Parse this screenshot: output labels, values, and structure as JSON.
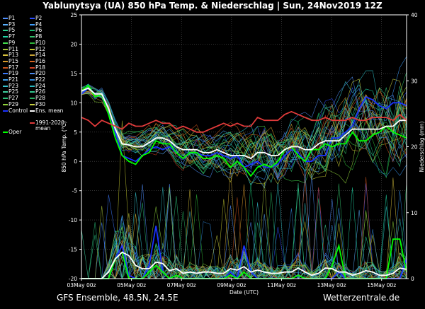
{
  "chart_data": {
    "type": "line",
    "title": "Yablunytsya  (UA)  850 hPa Temp. & Niederschlag | Sun, 24Nov2019 12Z",
    "footer_left": "GFS Ensemble, 48.5N, 24.5E",
    "footer_right": "Wetterzentrale.de",
    "xlabel": "Date (UTC)",
    "ylabel_left": "850 hPa Temp. (°C)",
    "ylabel_right": "Niederschlag (mm)",
    "ylim_left": [
      -20,
      25
    ],
    "ylim_right": [
      0,
      40
    ],
    "xlim_hours": [
      0,
      312
    ],
    "yticks_left": [
      -20,
      -15,
      -10,
      -5,
      0,
      5,
      10,
      15,
      20,
      25
    ],
    "yticks_right": [
      0,
      10,
      20,
      30,
      40
    ],
    "xticks": [
      {
        "h": 0,
        "label": "03May 00z"
      },
      {
        "h": 48,
        "label": "05May 00z"
      },
      {
        "h": 96,
        "label": "07May 00z"
      },
      {
        "h": 144,
        "label": "09May 00z"
      },
      {
        "h": 192,
        "label": "11May 00z"
      },
      {
        "h": 240,
        "label": "13May 00z"
      },
      {
        "h": 288,
        "label": "15May 00z"
      }
    ],
    "grid": true,
    "legend": {
      "position": "left",
      "items": [
        {
          "label": "P1",
          "color": "#4f8fff"
        },
        {
          "label": "P2",
          "color": "#2a4cff"
        },
        {
          "label": "P3",
          "color": "#59b0ff"
        },
        {
          "label": "P4",
          "color": "#3fa0ff"
        },
        {
          "label": "P5",
          "color": "#2ecf8f"
        },
        {
          "label": "P6",
          "color": "#17b86c"
        },
        {
          "label": "P7",
          "color": "#21d6a5"
        },
        {
          "label": "P8",
          "color": "#33c06b"
        },
        {
          "label": "P9",
          "color": "#44e04f"
        },
        {
          "label": "P10",
          "color": "#2fb83a"
        },
        {
          "label": "P11",
          "color": "#a6c43a"
        },
        {
          "label": "P12",
          "color": "#c2c730"
        },
        {
          "label": "P13",
          "color": "#d9c23c"
        },
        {
          "label": "P14",
          "color": "#c9a434"
        },
        {
          "label": "P15",
          "color": "#d89a2a"
        },
        {
          "label": "P16",
          "color": "#d9641f"
        },
        {
          "label": "P17",
          "color": "#c9531c"
        },
        {
          "label": "P18",
          "color": "#cf4020"
        },
        {
          "label": "P19",
          "color": "#3c7bff"
        },
        {
          "label": "P20",
          "color": "#4c8cf0"
        },
        {
          "label": "P21",
          "color": "#3b9dea"
        },
        {
          "label": "P22",
          "color": "#2f86d8"
        },
        {
          "label": "P23",
          "color": "#36c4d0"
        },
        {
          "label": "P24",
          "color": "#2ab8c0"
        },
        {
          "label": "P25",
          "color": "#3fd0a0"
        },
        {
          "label": "P26",
          "color": "#33c890"
        },
        {
          "label": "P27",
          "color": "#2cc07a"
        },
        {
          "label": "P28",
          "color": "#27b060"
        },
        {
          "label": "P29",
          "color": "#8fd33a"
        },
        {
          "label": "P30",
          "color": "#c8d040"
        },
        {
          "label": "Control",
          "color": "#1a33ff"
        },
        {
          "label": "Ens. mean",
          "color": "#ffffff"
        },
        {
          "label": "1991-2020\nmean",
          "color": "#e03a3a"
        },
        {
          "label": "Oper",
          "color": "#00ff00"
        }
      ]
    },
    "series_temp": [
      {
        "name": "Control",
        "color": "#1a33ff",
        "values": [
          11.5,
          12.5,
          11.5,
          11.5,
          9,
          5,
          1,
          0.5,
          0,
          1,
          2,
          2.5,
          2,
          2.5,
          1.5,
          0.5,
          1.5,
          1.5,
          1,
          1,
          1.5,
          1,
          0.5,
          1,
          -1,
          -0.5,
          0,
          -1,
          -1,
          -0.5,
          1,
          2,
          1.5,
          0,
          0,
          1,
          1,
          4,
          4,
          5,
          6,
          9,
          11,
          10.5,
          9.5,
          9,
          10,
          10,
          9.5
        ]
      },
      {
        "name": "Oper",
        "color": "#00ff00",
        "values": [
          12,
          13,
          11,
          11.5,
          8,
          4,
          1,
          0,
          -0.5,
          1,
          1.5,
          3.5,
          3,
          3,
          1.5,
          0.5,
          1.5,
          1.5,
          0.5,
          0.5,
          1,
          0.5,
          -1,
          0,
          -1,
          -2.5,
          -1,
          -0.5,
          -1,
          0,
          2,
          2.5,
          1,
          0,
          2,
          2,
          3,
          2.5,
          3,
          3,
          5,
          3.5,
          3.5,
          4.5,
          5,
          6,
          5,
          4.5,
          4
        ]
      },
      {
        "name": "Ens. mean",
        "color": "#ffffff",
        "values": [
          12,
          12.5,
          11.5,
          11.5,
          9,
          5.5,
          3,
          2.8,
          2.5,
          2.5,
          3.2,
          4,
          4,
          3.5,
          2.5,
          2,
          2,
          2,
          1.5,
          1.5,
          2,
          1.5,
          1,
          1,
          1,
          0.5,
          1.5,
          1.5,
          1,
          1,
          2,
          2.5,
          2.5,
          2,
          2,
          3,
          3.5,
          3.5,
          3.5,
          4.5,
          5.5,
          5.5,
          5.5,
          5.5,
          5.5,
          6,
          6,
          7,
          7
        ]
      },
      {
        "name": "1991-2020 mean",
        "color": "#e03a3a",
        "values": [
          7.5,
          7,
          6,
          7,
          6.5,
          6,
          5.5,
          6.5,
          6,
          6,
          6.5,
          7,
          6.5,
          6.5,
          5.5,
          6,
          5.5,
          5,
          5,
          5.5,
          6,
          6.5,
          6,
          6.5,
          6,
          6,
          7.5,
          7,
          7,
          7,
          8,
          8.5,
          8,
          7.5,
          7,
          7,
          7.5,
          7,
          7,
          7,
          7.5,
          7,
          7,
          7.5,
          7.5,
          7.5,
          7,
          8,
          7
        ]
      }
    ],
    "series_precip": [
      {
        "name": "Control",
        "color": "#1a33ff",
        "values": [
          0,
          0,
          0,
          0,
          0,
          3,
          5,
          0.5,
          0,
          0,
          2,
          8,
          1,
          0,
          0.5,
          0,
          0,
          0,
          0,
          0,
          0,
          0,
          1,
          0,
          5,
          1,
          0,
          0,
          0,
          0,
          0,
          0,
          0.5,
          0,
          0,
          0,
          0,
          0,
          1,
          0,
          0,
          0,
          0,
          0,
          0,
          0,
          0,
          0,
          3
        ]
      },
      {
        "name": "Oper",
        "color": "#00ff00",
        "values": [
          0,
          0,
          0,
          0,
          0,
          3,
          4,
          0,
          0,
          0,
          1,
          2,
          1,
          0,
          0.5,
          0,
          0,
          0,
          0,
          0,
          0,
          0,
          0.5,
          0,
          1,
          0,
          0,
          0,
          0,
          0,
          0,
          0,
          0.5,
          0,
          0,
          0,
          0,
          2,
          5,
          0,
          0,
          0,
          0,
          0,
          0,
          0,
          6,
          6,
          1
        ]
      },
      {
        "name": "Ens. mean",
        "color": "#ffffff",
        "values": [
          0,
          0,
          0,
          0,
          1,
          3,
          4,
          3.5,
          2,
          1.5,
          1.5,
          2.5,
          2.3,
          1.2,
          1.5,
          0.8,
          1,
          0.8,
          1,
          1,
          0.8,
          0.8,
          1.5,
          1.3,
          1.8,
          1,
          1.3,
          1,
          0.8,
          0.8,
          1,
          1,
          1.6,
          1,
          0.5,
          0.8,
          1.6,
          1.5,
          1,
          1,
          0.5,
          0.8,
          1.2,
          1,
          0.5,
          0.5,
          0.8,
          1.6,
          1.4
        ]
      }
    ],
    "hour_step": 6.5
  }
}
